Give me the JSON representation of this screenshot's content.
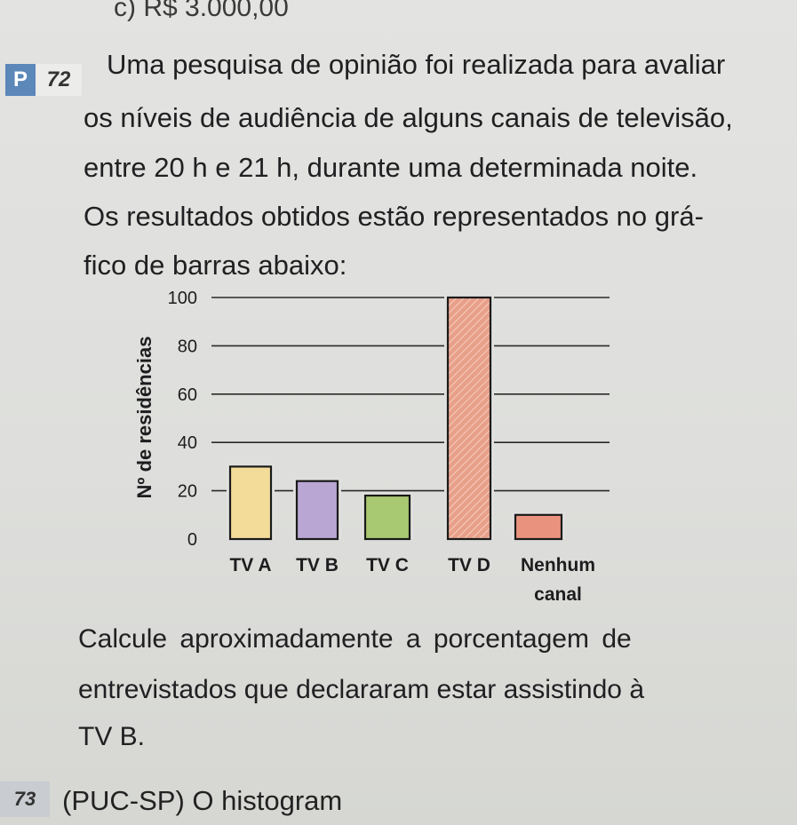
{
  "header": {
    "prev_answer": "c) R$ 3.000,00"
  },
  "problem": {
    "badge_letter": "P",
    "number": "72",
    "lines": [
      "Uma pesquisa de opinião foi realizada para avaliar",
      "os níveis de audiência de alguns canais de televisão,",
      "entre 20 h e 21 h, durante uma determinada noite.",
      "Os resultados obtidos estão representados no grá-",
      "fico de barras abaixo:"
    ],
    "question_lines": [
      "Calcule aproximadamente a porcentagem de",
      "entrevistados que declararam estar assistindo à",
      "TV B."
    ]
  },
  "next_problem": {
    "number": "73",
    "text": "(PUC-SP) O histogram"
  },
  "chart_data": {
    "type": "bar",
    "categories": [
      "TV A",
      "TV B",
      "TV C",
      "TV D",
      [
        "Nenhum",
        "canal"
      ]
    ],
    "values": [
      30,
      24,
      18,
      100,
      10
    ],
    "ylabel": "Nº de residências",
    "yticks": [
      0,
      20,
      40,
      60,
      80,
      100
    ],
    "ylim": [
      0,
      100
    ],
    "grid": true,
    "colors": [
      "#f3dc9a",
      "#b9a6d3",
      "#a9c872",
      "#e8a08a",
      "#e9937e"
    ]
  }
}
